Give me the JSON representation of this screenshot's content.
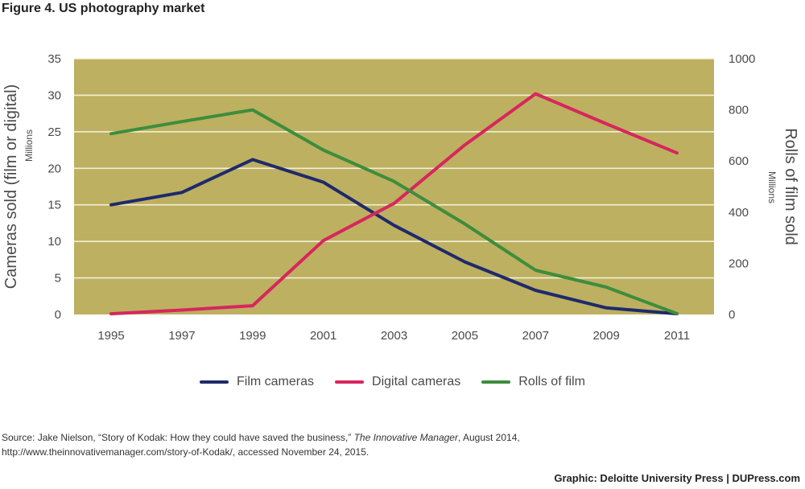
{
  "figure_title": "Figure 4. US photography market",
  "source": {
    "prefix": "Source: Jake Nielson, “Story of Kodak: How they could have saved the business,” ",
    "publication": "The Innovative Manager",
    "suffix": ", August 2014,",
    "line2": "http://www.theinnovativemanager.com/story-of-Kodak/, accessed November 24, 2015."
  },
  "credit": "Graphic: Deloitte University Press  |  DUPress.com",
  "colors": {
    "plot_bg": "#bdb061",
    "grid": "#f2efd6",
    "film_cameras": "#1f2a6b",
    "digital_cameras": "#d7265d",
    "rolls_of_film": "#3d8d3c"
  },
  "chart_data": {
    "type": "line",
    "x": [
      1995,
      1997,
      1999,
      2001,
      2003,
      2005,
      2007,
      2009,
      2011
    ],
    "x_tick_labels": [
      "1995",
      "1997",
      "1999",
      "2001",
      "2003",
      "2005",
      "2007",
      "2009",
      "2011"
    ],
    "y_left": {
      "title": "Cameras sold (film or digital)",
      "unit": "Millions",
      "ylim": [
        0,
        35
      ],
      "ticks": [
        "0",
        "5",
        "10",
        "15",
        "20",
        "25",
        "30",
        "35"
      ]
    },
    "y_right": {
      "title": "Rolls of film sold",
      "unit": "Millions",
      "ylim": [
        0,
        1000
      ],
      "ticks": [
        "0",
        "200",
        "400",
        "600",
        "800",
        "1000"
      ]
    },
    "grid": true,
    "legend_position": "bottom",
    "series": [
      {
        "name": "Film cameras",
        "axis": "left",
        "color_key": "film_cameras",
        "values": [
          15.0,
          16.7,
          21.2,
          18.1,
          12.2,
          7.2,
          3.3,
          0.9,
          0.1
        ]
      },
      {
        "name": "Digital cameras",
        "axis": "left",
        "color_key": "digital_cameras",
        "values": [
          0.1,
          0.6,
          1.2,
          10.1,
          15.2,
          23.2,
          30.2,
          26.1,
          22.1
        ]
      },
      {
        "name": "Rolls of film",
        "axis": "right",
        "color_key": "rolls_of_film",
        "values": [
          707,
          754,
          800,
          643,
          520,
          354,
          173,
          107,
          3
        ]
      }
    ]
  }
}
